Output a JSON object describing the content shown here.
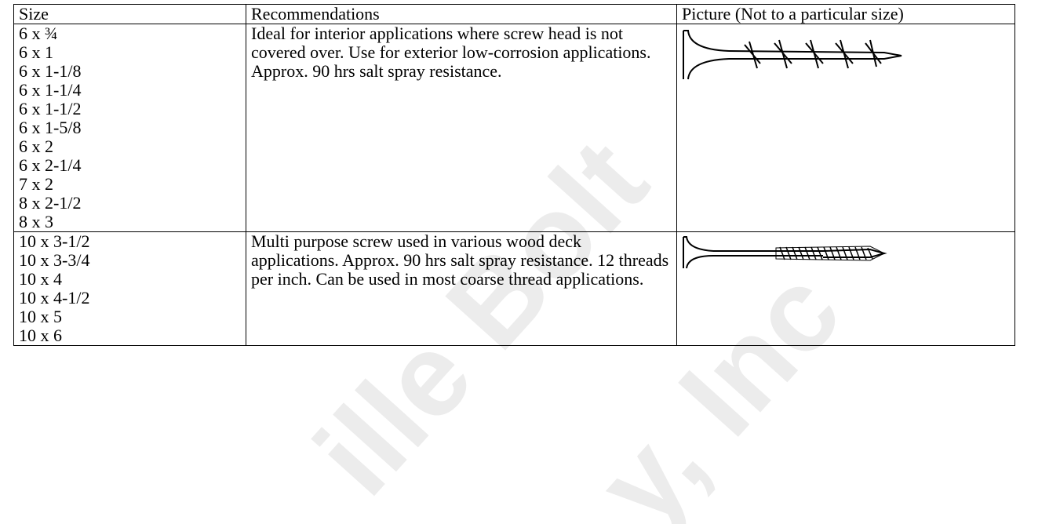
{
  "table": {
    "header": [
      "Size",
      "Recommendations",
      "Picture (Not to a particular size)"
    ],
    "rows": [
      {
        "sizes": [
          "6 x ¾",
          "6 x 1",
          "6 x 1-1/8",
          "6 x 1-1/4",
          "6 x 1-1/2",
          "6 x 1-5/8",
          "6 x 2",
          "6 x 2-1/4",
          "7 x 2",
          "8 x 2-1/2",
          "8 x 3"
        ],
        "recommendation": "Ideal for interior applications where screw head is not covered over. Use for exterior low-corrosion applications. Approx. 90 hrs salt spray resistance."
      },
      {
        "sizes": [
          "10 x 3-1/2",
          "10 x 3-3/4",
          "10 x 4",
          "10 x 4-1/2",
          "10 x 5",
          "10 x 6"
        ],
        "recommendation": "Multi purpose screw used in various wood deck applications. Approx. 90 hrs salt spray resistance. 12 threads per inch. Can be used in most coarse thread applications."
      }
    ]
  },
  "watermark": [
    "ille Bolt",
    "y, Inc"
  ]
}
